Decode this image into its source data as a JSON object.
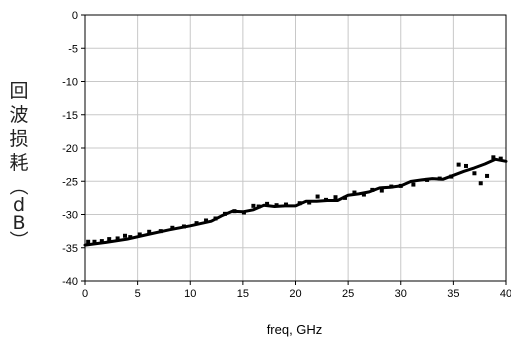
{
  "chart_data": {
    "type": "line",
    "title": "",
    "xlabel": "freq, GHz",
    "ylabel": "回波损耗（dB）",
    "xlim": [
      0,
      40
    ],
    "ylim": [
      -40,
      0
    ],
    "x_ticks": [
      "0",
      "5",
      "10",
      "15",
      "20",
      "25",
      "30",
      "35",
      "40"
    ],
    "y_ticks": [
      "0",
      "-5",
      "-10",
      "-15",
      "-20",
      "-25",
      "-30",
      "-35",
      "-40"
    ],
    "grid": true,
    "legend": "none",
    "series": [
      {
        "style": "solid-line",
        "color": "#000000",
        "x": [
          0,
          2,
          4,
          6,
          8,
          10,
          12,
          13,
          14,
          15,
          16,
          17,
          18,
          19,
          20,
          21,
          22,
          23,
          24,
          25,
          26,
          27,
          28,
          29,
          30,
          31,
          32,
          33,
          34,
          35,
          36,
          37,
          38,
          39,
          40
        ],
        "y": [
          -34.6,
          -34.2,
          -33.7,
          -33.0,
          -32.3,
          -31.7,
          -31.0,
          -30.2,
          -29.5,
          -29.6,
          -29.3,
          -28.6,
          -28.8,
          -28.7,
          -28.7,
          -28.0,
          -28.0,
          -27.9,
          -27.9,
          -27.1,
          -26.9,
          -26.6,
          -26.0,
          -25.9,
          -25.7,
          -25.0,
          -24.8,
          -24.6,
          -24.7,
          -24.1,
          -23.5,
          -23.0,
          -22.4,
          -21.7,
          -22.0
        ]
      },
      {
        "style": "markers",
        "color": "#000000",
        "x": [
          0.3,
          0.9,
          1.6,
          2.3,
          3.1,
          3.8,
          4.3,
          5.2,
          6.1,
          7.2,
          8.3,
          9.4,
          10.6,
          11.5,
          12.4,
          13.3,
          14.2,
          15.1,
          16.0,
          16.5,
          17.3,
          18.2,
          19.1,
          20.4,
          21.3,
          22.1,
          22.9,
          23.8,
          24.7,
          25.6,
          26.5,
          27.3,
          28.2,
          29.1,
          30.0,
          31.2,
          32.5,
          33.7,
          34.8,
          35.5,
          36.2,
          37.0,
          37.6,
          38.2,
          38.8,
          39.5
        ],
        "y": [
          -34.1,
          -34.1,
          -34.0,
          -33.7,
          -33.6,
          -33.2,
          -33.4,
          -33.0,
          -32.6,
          -32.5,
          -32.0,
          -31.8,
          -31.3,
          -30.9,
          -30.6,
          -29.9,
          -29.5,
          -29.7,
          -28.7,
          -28.8,
          -28.4,
          -28.6,
          -28.5,
          -28.3,
          -28.2,
          -27.3,
          -27.8,
          -27.4,
          -27.5,
          -26.7,
          -27.0,
          -26.3,
          -26.4,
          -25.8,
          -25.7,
          -25.5,
          -24.8,
          -24.6,
          -24.3,
          -22.5,
          -22.7,
          -23.8,
          -25.3,
          -24.2,
          -21.4,
          -21.6
        ]
      }
    ]
  }
}
